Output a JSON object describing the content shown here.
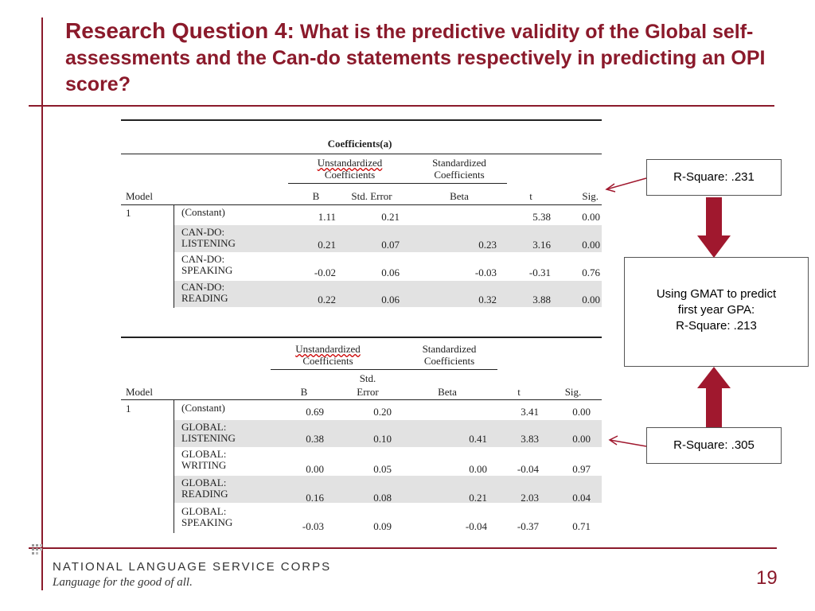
{
  "title": {
    "lead": "Research Question 4:",
    "rest": " What is the predictive validity of the Global self-assessments and the Can-do statements respectively in predicting an OPI score?"
  },
  "table1": {
    "caption": "Coefficients(a)",
    "group_unstd": [
      "Unstandardized",
      "Coefficients"
    ],
    "group_std": [
      "Standardized",
      "Coefficients"
    ],
    "headers": {
      "model": "Model",
      "b": "B",
      "se": "Std. Error",
      "beta": "Beta",
      "t": "t",
      "sig": "Sig."
    },
    "model_number": "1",
    "rows": [
      {
        "label": [
          "(Constant)"
        ],
        "b": "1.11",
        "se": "0.21",
        "beta": "",
        "t": "5.38",
        "sig": "0.00"
      },
      {
        "label": [
          "CAN-DO:",
          "LISTENING"
        ],
        "b": "0.21",
        "se": "0.07",
        "beta": "0.23",
        "t": "3.16",
        "sig": "0.00"
      },
      {
        "label": [
          "CAN-DO:",
          "SPEAKING"
        ],
        "b": "-0.02",
        "se": "0.06",
        "beta": "-0.03",
        "t": "-0.31",
        "sig": "0.76"
      },
      {
        "label": [
          "CAN-DO:",
          "READING"
        ],
        "b": "0.22",
        "se": "0.06",
        "beta": "0.32",
        "t": "3.88",
        "sig": "0.00"
      }
    ]
  },
  "table2": {
    "group_unstd": [
      "Unstandardized",
      "Coefficients"
    ],
    "group_std": [
      "Standardized",
      "Coefficients"
    ],
    "headers": {
      "model": "Model",
      "b": "B",
      "se_1": "Std.",
      "se_2": "Error",
      "beta": "Beta",
      "t": "t",
      "sig": "Sig."
    },
    "model_number": "1",
    "rows": [
      {
        "label": [
          "(Constant)"
        ],
        "b": "0.69",
        "se": "0.20",
        "beta": "",
        "t": "3.41",
        "sig": "0.00"
      },
      {
        "label": [
          "GLOBAL:",
          "LISTENING"
        ],
        "b": "0.38",
        "se": "0.10",
        "beta": "0.41",
        "t": "3.83",
        "sig": "0.00"
      },
      {
        "label": [
          "GLOBAL:",
          "WRITING"
        ],
        "b": "0.00",
        "se": "0.05",
        "beta": "0.00",
        "t": "-0.04",
        "sig": "0.97"
      },
      {
        "label": [
          "GLOBAL:",
          "READING"
        ],
        "b": "0.16",
        "se": "0.08",
        "beta": "0.21",
        "t": "2.03",
        "sig": "0.04"
      },
      {
        "label": [
          "GLOBAL:",
          "SPEAKING"
        ],
        "b": "-0.03",
        "se": "0.09",
        "beta": "-0.04",
        "t": "-0.37",
        "sig": "0.71"
      }
    ]
  },
  "callouts": {
    "top": "R-Square: .231",
    "middle": [
      "Using GMAT to predict",
      "first year GPA:",
      "R-Square: .213"
    ],
    "bottom": "R-Square: .305"
  },
  "footer": {
    "org": "NATIONAL LANGUAGE SERVICE CORPS",
    "tagline": "Language for the good of all.",
    "page_number": "19"
  },
  "colors": {
    "accent": "#8b1a2b",
    "arrow": "#a0182e",
    "row_shade": "#e2e2e2"
  }
}
